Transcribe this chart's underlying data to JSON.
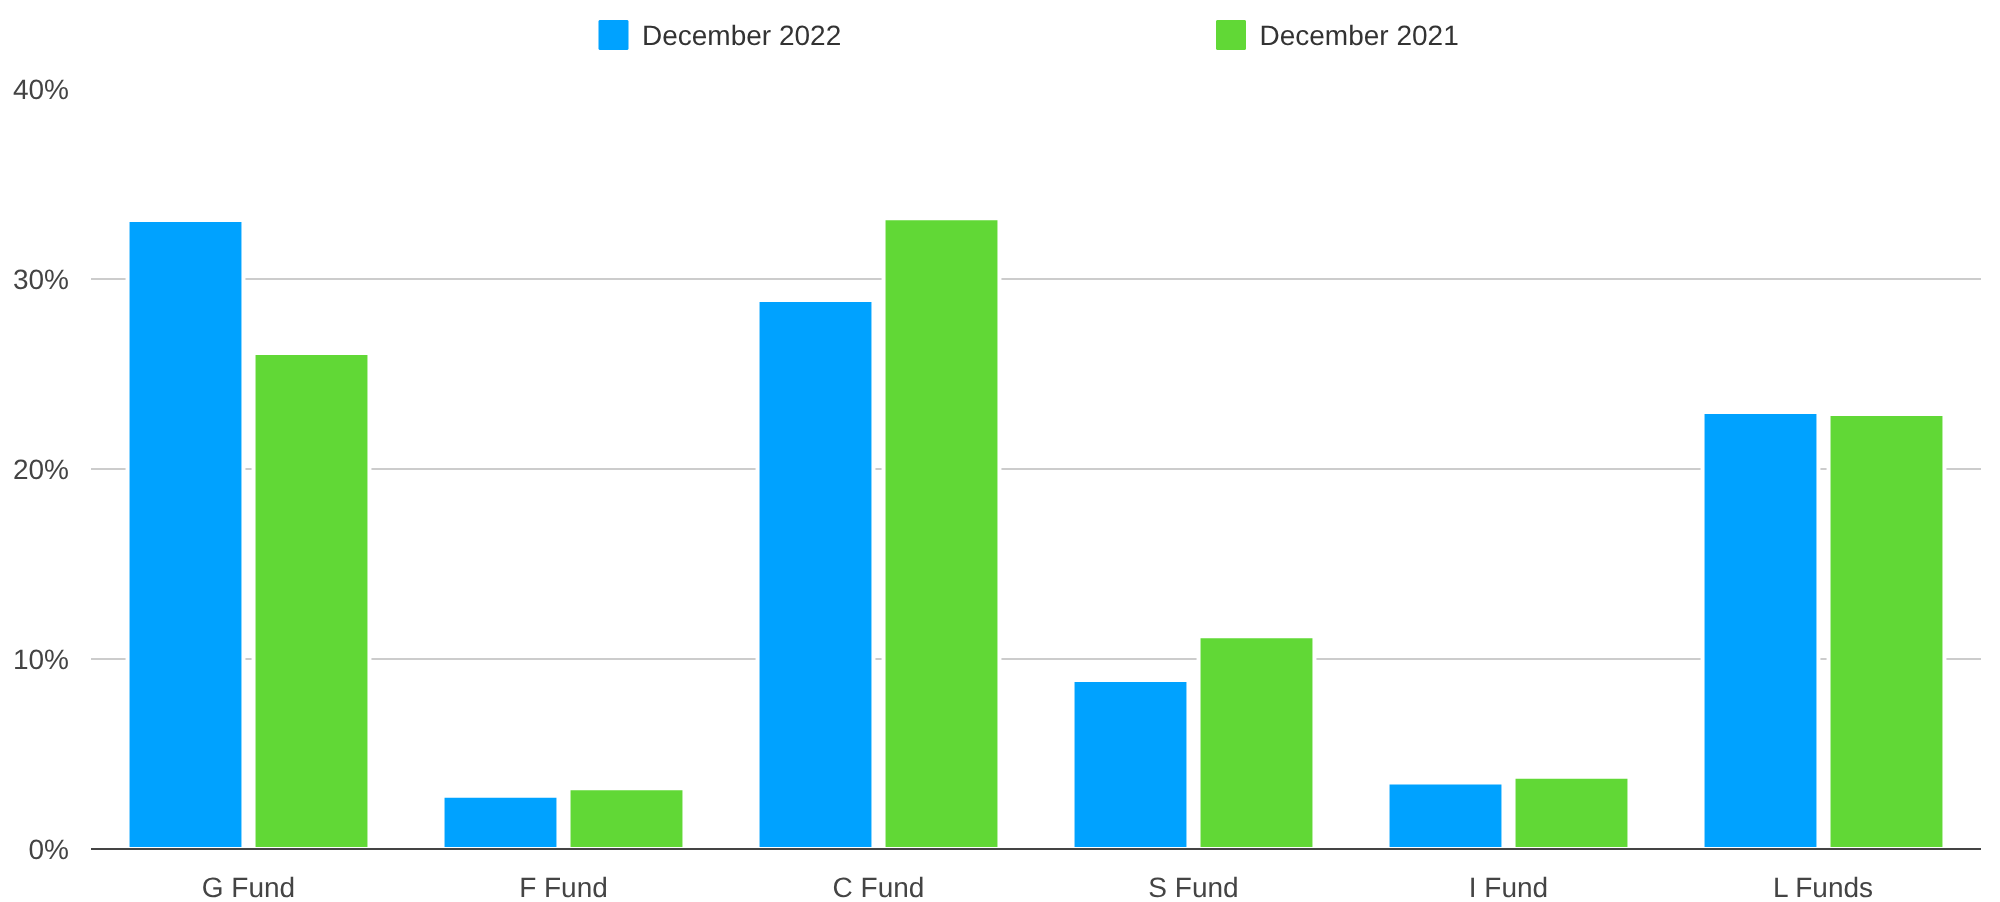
{
  "chart_data": {
    "type": "bar",
    "categories": [
      "G Fund",
      "F Fund",
      "C Fund",
      "S Fund",
      "I Fund",
      "L Funds"
    ],
    "series": [
      {
        "name": "December 2022",
        "color": "#00a2ff",
        "values": [
          33.1,
          2.8,
          28.9,
          8.9,
          3.5,
          23.0
        ]
      },
      {
        "name": "December 2021",
        "color": "#61d836",
        "values": [
          26.1,
          3.2,
          33.2,
          11.2,
          3.8,
          22.9
        ]
      }
    ],
    "ylim": [
      0,
      40
    ],
    "yticks": [
      {
        "value": 0,
        "label": "0%"
      },
      {
        "value": 10,
        "label": "10%"
      },
      {
        "value": 20,
        "label": "20%"
      },
      {
        "value": 30,
        "label": "30%"
      },
      {
        "value": 40,
        "label": "40%"
      }
    ],
    "grid": "y",
    "legend": "top"
  }
}
